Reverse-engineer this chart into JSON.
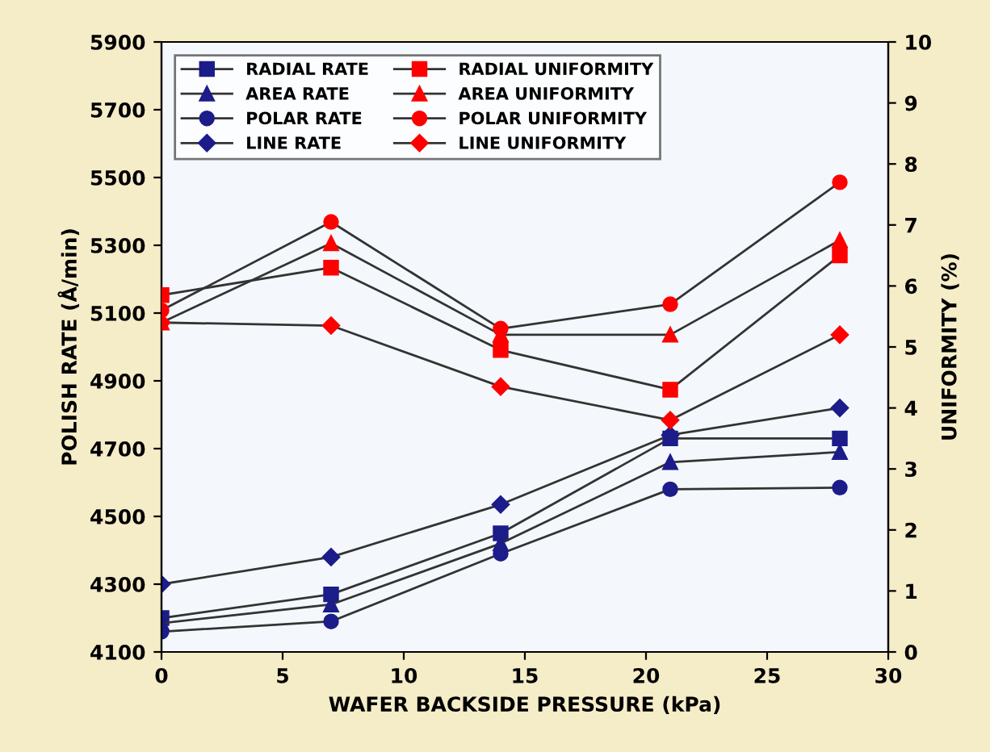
{
  "chart_data": {
    "type": "line",
    "xlabel": "WAFER BACKSIDE PRESSURE (kPa)",
    "ylabel": "POLISH RATE (Å/min)",
    "y2label": "UNIFORMITY (%)",
    "x": [
      0,
      7,
      14,
      21,
      28
    ],
    "xlim": [
      0,
      30
    ],
    "xticks": [
      0,
      5,
      10,
      15,
      20,
      25,
      30
    ],
    "ylim": [
      4100,
      5900
    ],
    "yticks": [
      4100,
      4300,
      4500,
      4700,
      4900,
      5100,
      5300,
      5500,
      5700,
      5900
    ],
    "y2lim": [
      0,
      10
    ],
    "y2ticks": [
      0,
      1,
      2,
      3,
      4,
      5,
      6,
      7,
      8,
      9,
      10
    ],
    "legend": "top left",
    "grid": false,
    "series": [
      {
        "name": "RADIAL RATE",
        "color": "#1c1c8a",
        "marker": "square",
        "values": [
          4200,
          4270,
          4450,
          4730,
          4730
        ]
      },
      {
        "name": "AREA RATE",
        "color": "#1c1c8a",
        "marker": "triangle",
        "values": [
          4185,
          4240,
          4420,
          4660,
          4690
        ]
      },
      {
        "name": "POLAR RATE",
        "color": "#1c1c8a",
        "marker": "circle",
        "values": [
          4160,
          4190,
          4390,
          4580,
          4585
        ]
      },
      {
        "name": "LINE RATE",
        "color": "#1c1c8a",
        "marker": "diamond",
        "values": [
          4300,
          4380,
          4535,
          4740,
          4820
        ]
      },
      {
        "name": "RADIAL UNIFORMITY",
        "color": "#ff0000",
        "marker": "square",
        "axis": "y2",
        "values": [
          5.85,
          6.3,
          4.95,
          4.3,
          6.5
        ]
      },
      {
        "name": "AREA UNIFORMITY",
        "color": "#ff0000",
        "marker": "triangle",
        "axis": "y2",
        "values": [
          5.4,
          6.7,
          5.2,
          5.2,
          6.75
        ]
      },
      {
        "name": "POLAR UNIFORMITY",
        "color": "#ff0000",
        "marker": "circle",
        "axis": "y2",
        "values": [
          5.6,
          7.05,
          5.3,
          5.7,
          7.7
        ]
      },
      {
        "name": "LINE UNIFORMITY",
        "color": "#ff0000",
        "marker": "diamond",
        "axis": "y2",
        "values": [
          5.4,
          5.35,
          4.35,
          3.8,
          5.2
        ]
      }
    ]
  }
}
